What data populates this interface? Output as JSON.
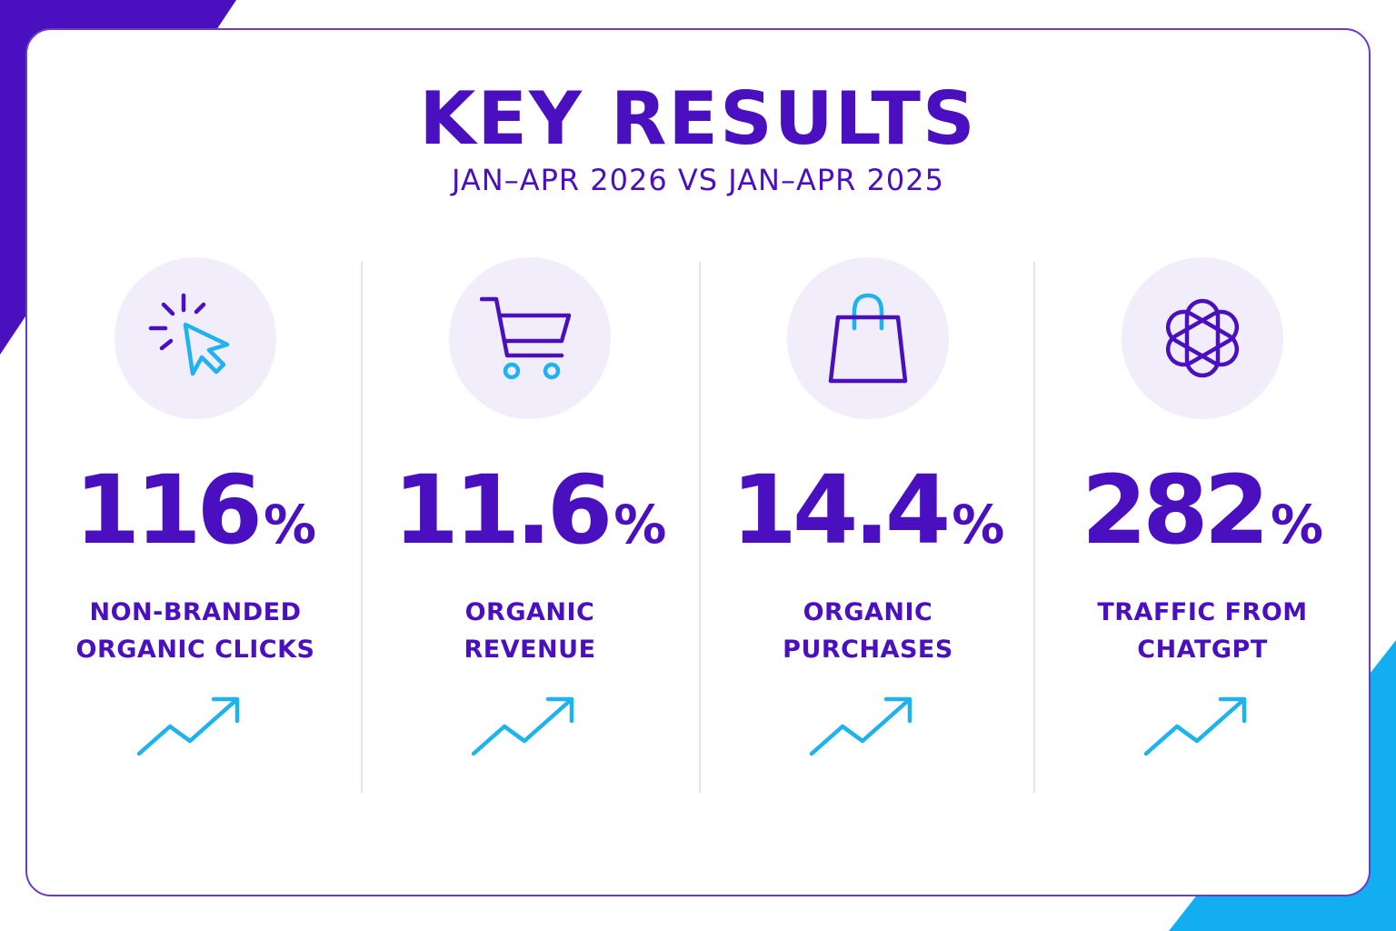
{
  "colors": {
    "primary": "#4a10c0",
    "accent": "#1eb2ee",
    "corner_top_left": "#4a10c0",
    "corner_bottom_right": "#12aef0"
  },
  "header": {
    "title": "KEY RESULTS",
    "subtitle": "JAN–APR 2026 VS JAN–APR 2025"
  },
  "metrics": [
    {
      "icon": "cursor-click-icon",
      "value": "116",
      "unit": "%",
      "label_lines": [
        "NON-BRANDED",
        "ORGANIC CLICKS"
      ],
      "trend": "up"
    },
    {
      "icon": "shopping-cart-icon",
      "value": "11.6",
      "unit": "%",
      "label_lines": [
        "ORGANIC",
        "REVENUE"
      ],
      "trend": "up"
    },
    {
      "icon": "shopping-bag-icon",
      "value": "14.4",
      "unit": "%",
      "label_lines": [
        "ORGANIC",
        "PURCHASES"
      ],
      "trend": "up"
    },
    {
      "icon": "chatgpt-logo-icon",
      "value": "282",
      "unit": "%",
      "label_lines": [
        "TRAFFIC FROM",
        "CHATGPT"
      ],
      "trend": "up"
    }
  ]
}
